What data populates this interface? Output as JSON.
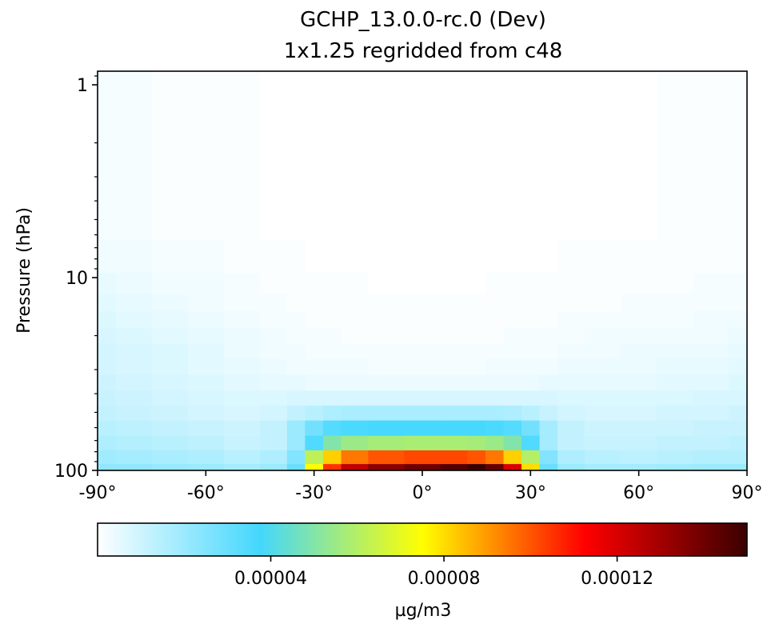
{
  "chart_data": {
    "type": "heatmap",
    "title": "GCHP_13.0.0-rc.0 (Dev)",
    "subtitle": "1x1.25 regridded from c48",
    "xlabel": "",
    "ylabel": "Pressure (hPa)",
    "xlim": [
      -90,
      90
    ],
    "ylim": [
      100,
      0.85
    ],
    "yscale": "log",
    "xticks": [
      -90,
      -60,
      -30,
      0,
      30,
      60,
      90
    ],
    "xtick_labels": [
      "-90°",
      "-60°",
      "-30°",
      "0°",
      "30°",
      "60°",
      "90°"
    ],
    "yticks": [
      1,
      10,
      100
    ],
    "ytick_labels": [
      "1",
      "10",
      "100"
    ],
    "colorscale": "WhGrYlRd",
    "colors": [
      "#ffffff",
      "#44d7fd",
      "#ffff00",
      "#ff0000",
      "#3a0000"
    ],
    "colorbar": {
      "label": "µg/m3",
      "vmin": 0,
      "vmax": 0.00015,
      "ticks": [
        4e-05,
        8e-05,
        0.00012
      ],
      "tick_labels": [
        "0.00004",
        "0.00008",
        "0.00012"
      ]
    },
    "latitudes": [
      -90,
      -80,
      -70,
      -60,
      -50,
      -40,
      -35,
      -30,
      -25,
      -20,
      -10,
      0,
      10,
      15,
      20,
      25,
      30,
      35,
      40,
      50,
      60,
      70,
      80,
      90
    ],
    "pressure_levels": [
      100,
      85,
      72,
      60,
      50,
      42,
      35,
      29,
      24,
      20,
      16.5,
      13.5,
      11,
      8,
      5
    ],
    "values": [
      [
        2.2e-05,
        2.2e-05,
        2.1e-05,
        2e-05,
        1.8e-05,
        2e-05,
        3e-05,
        7.5e-05,
        0.000105,
        0.000125,
        0.000135,
        0.00014,
        0.000145,
        0.00015,
        0.000142,
        0.00012,
        8e-05,
        3e-05,
        2e-05,
        1.8e-05,
        1.8e-05,
        1.9e-05,
        2e-05,
        2e-05
      ],
      [
        1.9e-05,
        1.8e-05,
        1.7e-05,
        1.6e-05,
        1.4e-05,
        1.6e-05,
        2.5e-05,
        6.2e-05,
        8.2e-05,
        9.5e-05,
        0.0001,
        0.000102,
        0.000102,
        0.0001,
        9.5e-05,
        8.2e-05,
        6e-05,
        2.5e-05,
        1.6e-05,
        1.4e-05,
        1.3e-05,
        1.4e-05,
        1.5e-05,
        1.5e-05
      ],
      [
        1.6e-05,
        1.5e-05,
        1.4e-05,
        1.3e-05,
        1.1e-05,
        1.2e-05,
        2e-05,
        3.5e-05,
        5e-05,
        5.5e-05,
        5.7e-05,
        5.8e-05,
        5.8e-05,
        5.7e-05,
        5.5e-05,
        5e-05,
        3.5e-05,
        1.8e-05,
        1.2e-05,
        1.1e-05,
        1.1e-05,
        1.2e-05,
        1.2e-05,
        1.3e-05
      ],
      [
        1.4e-05,
        1.3e-05,
        1.2e-05,
        1.1e-05,
        1e-05,
        1.2e-05,
        2e-05,
        2.8e-05,
        3.4e-05,
        3.6e-05,
        3.7e-05,
        3.7e-05,
        3.7e-05,
        3.7e-05,
        3.6e-05,
        3.4e-05,
        2.8e-05,
        1.8e-05,
        1.2e-05,
        1e-05,
        1e-05,
        1e-05,
        1.1e-05,
        1.1e-05
      ],
      [
        1.2e-05,
        1.1e-05,
        1e-05,
        9e-06,
        8e-06,
        9e-06,
        1.2e-05,
        1.4e-05,
        1.6e-05,
        1.7e-05,
        1.7e-05,
        1.7e-05,
        1.7e-05,
        1.7e-05,
        1.7e-05,
        1.6e-05,
        1.4e-05,
        1.1e-05,
        9e-06,
        8e-06,
        8e-06,
        9e-06,
        9e-06,
        1e-05
      ],
      [
        1.1e-05,
        1e-05,
        9e-06,
        8e-06,
        7e-06,
        7e-06,
        8e-06,
        8e-06,
        8e-06,
        8e-06,
        8e-06,
        8e-06,
        8e-06,
        8e-06,
        8e-06,
        8e-06,
        8e-06,
        8e-06,
        7e-06,
        7e-06,
        7e-06,
        7e-06,
        8e-06,
        8e-06
      ],
      [
        1e-05,
        9e-06,
        8e-06,
        7e-06,
        6e-06,
        5e-06,
        5e-06,
        4e-06,
        4e-06,
        4e-06,
        4e-06,
        4e-06,
        4e-06,
        4e-06,
        4e-06,
        4e-06,
        4e-06,
        5e-06,
        5e-06,
        5e-06,
        5e-06,
        6e-06,
        6e-06,
        7e-06
      ],
      [
        9e-06,
        8e-06,
        7e-06,
        6e-06,
        5e-06,
        4e-06,
        3e-06,
        3e-06,
        3e-06,
        3e-06,
        2e-06,
        2e-06,
        2e-06,
        2e-06,
        3e-06,
        3e-06,
        3e-06,
        3e-06,
        4e-06,
        4e-06,
        4e-06,
        5e-06,
        5e-06,
        6e-06
      ],
      [
        9e-06,
        8e-06,
        7e-06,
        6e-06,
        4e-06,
        3e-06,
        3e-06,
        2e-06,
        2e-06,
        2e-06,
        2e-06,
        2e-06,
        2e-06,
        2e-06,
        2e-06,
        2e-06,
        2e-06,
        2e-06,
        3e-06,
        3e-06,
        4e-06,
        4e-06,
        4e-06,
        5e-06
      ],
      [
        8e-06,
        7e-06,
        6e-06,
        5e-06,
        4e-06,
        3e-06,
        2e-06,
        2e-06,
        2e-06,
        1e-06,
        1e-06,
        1e-06,
        1e-06,
        1e-06,
        1e-06,
        2e-06,
        2e-06,
        2e-06,
        2e-06,
        3e-06,
        3e-06,
        3e-06,
        3e-06,
        4e-06
      ],
      [
        7e-06,
        6e-06,
        5e-06,
        4e-06,
        3e-06,
        2e-06,
        2e-06,
        1e-06,
        1e-06,
        1e-06,
        1e-06,
        1e-06,
        1e-06,
        1e-06,
        1e-06,
        1e-06,
        1e-06,
        1e-06,
        2e-06,
        2e-06,
        2e-06,
        2e-06,
        3e-06,
        3e-06
      ],
      [
        6e-06,
        5e-06,
        4e-06,
        3e-06,
        2e-06,
        2e-06,
        1e-06,
        1e-06,
        1e-06,
        1e-06,
        1e-06,
        1e-06,
        1e-06,
        1e-06,
        1e-06,
        1e-06,
        1e-06,
        1e-06,
        1e-06,
        1e-06,
        2e-06,
        2e-06,
        2e-06,
        2e-06
      ],
      [
        5e-06,
        4e-06,
        3e-06,
        3e-06,
        2e-06,
        1e-06,
        1e-06,
        1e-06,
        1e-06,
        1e-06,
        0.0,
        0.0,
        0.0,
        0.0,
        1e-06,
        1e-06,
        1e-06,
        1e-06,
        1e-06,
        1e-06,
        1e-06,
        1e-06,
        2e-06,
        2e-06
      ],
      [
        3e-06,
        3e-06,
        2e-06,
        2e-06,
        1e-06,
        1e-06,
        1e-06,
        0.0,
        0.0,
        0.0,
        0.0,
        0.0,
        0.0,
        0.0,
        0.0,
        0.0,
        0.0,
        0.0,
        1e-06,
        1e-06,
        1e-06,
        1e-06,
        1e-06,
        1e-06
      ],
      [
        2e-06,
        2e-06,
        1e-06,
        1e-06,
        1e-06,
        0.0,
        0.0,
        0.0,
        0.0,
        0.0,
        0.0,
        0.0,
        0.0,
        0.0,
        0.0,
        0.0,
        0.0,
        0.0,
        0.0,
        0.0,
        0.0,
        1e-06,
        1e-06,
        1e-06
      ]
    ]
  }
}
